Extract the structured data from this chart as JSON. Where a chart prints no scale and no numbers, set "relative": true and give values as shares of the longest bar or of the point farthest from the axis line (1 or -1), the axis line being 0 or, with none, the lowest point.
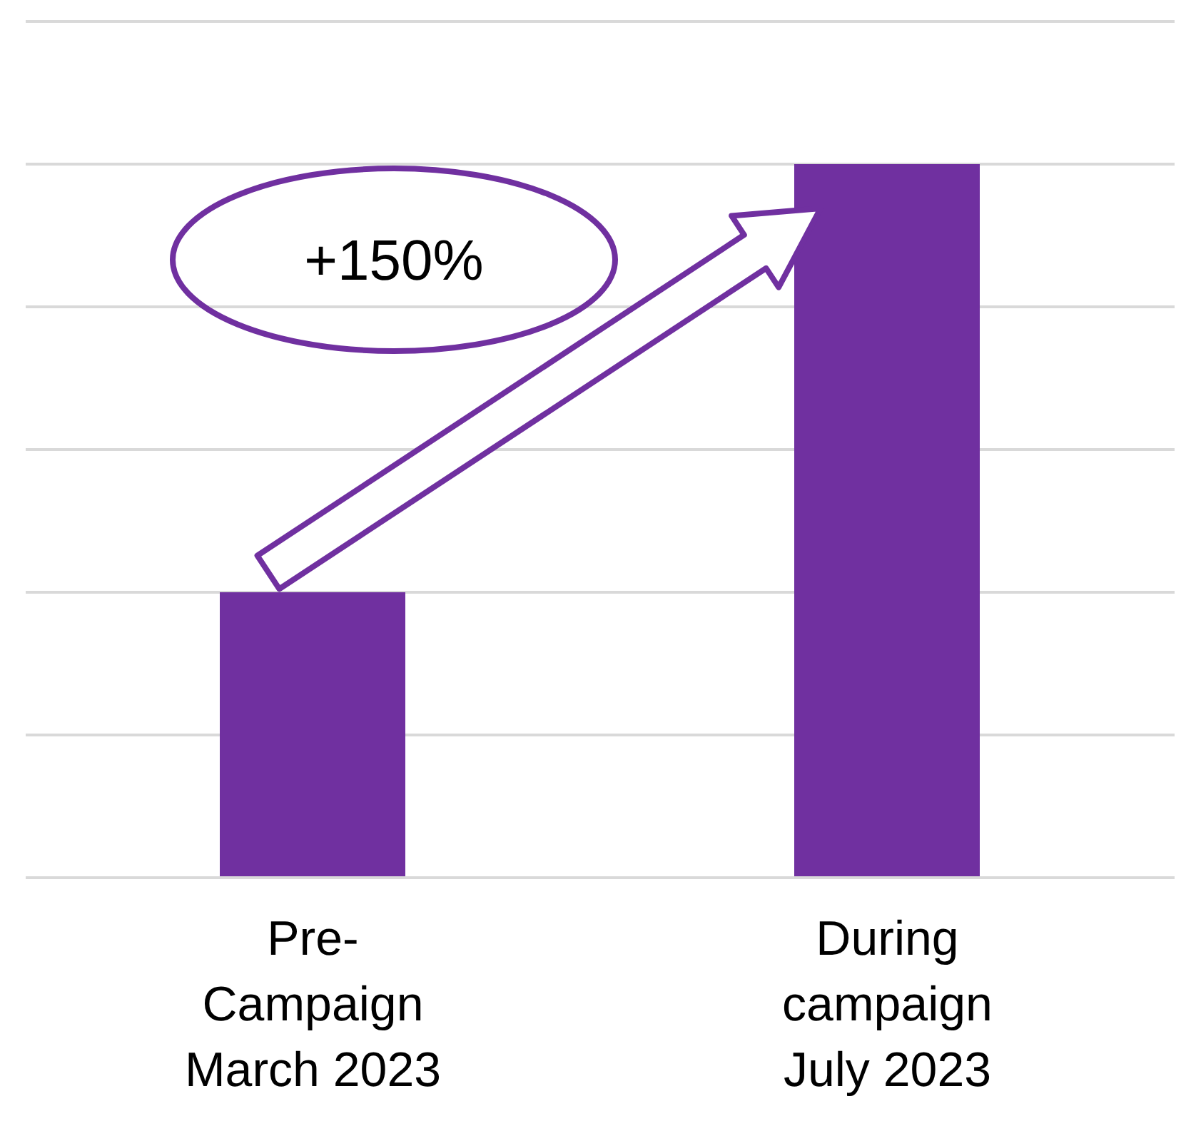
{
  "chart_data": {
    "type": "bar",
    "relative": true,
    "categories": [
      "Pre-Campaign March 2023",
      "During campaign July 2023"
    ],
    "values": [
      0.4,
      1
    ],
    "color": "#7030a0",
    "grid": "y",
    "annotations": [
      "+150%"
    ]
  }
}
